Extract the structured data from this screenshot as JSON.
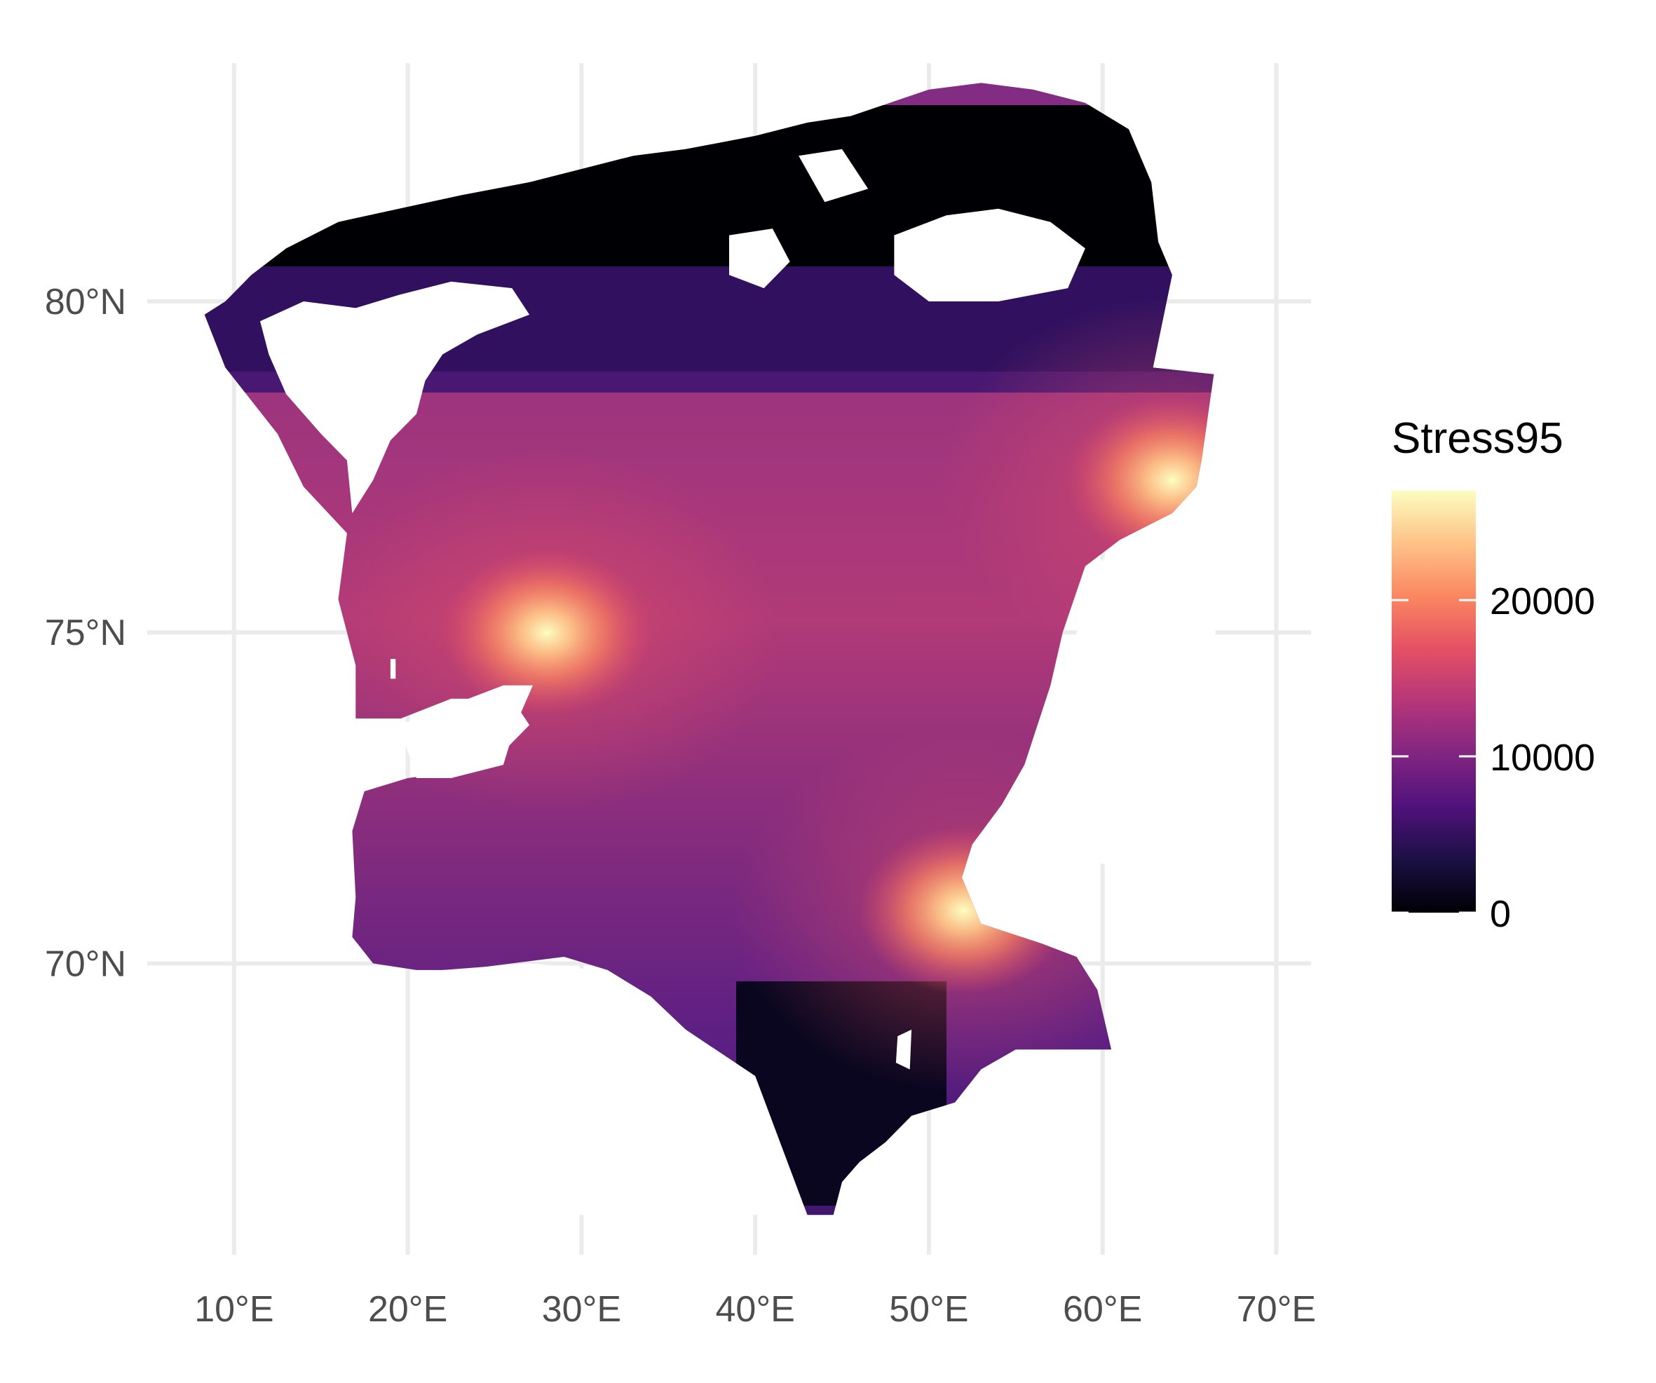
{
  "chart_data": {
    "type": "heatmap",
    "title": "",
    "xlabel": "",
    "ylabel": "",
    "x_axis": {
      "ticks": [
        10,
        20,
        30,
        40,
        50,
        60,
        70
      ],
      "tick_labels": [
        "10°E",
        "20°E",
        "30°E",
        "40°E",
        "50°E",
        "60°E",
        "70°E"
      ]
    },
    "y_axis": {
      "ticks": [
        70,
        75,
        80
      ],
      "tick_labels": [
        "70°N",
        "75°N",
        "80°N"
      ]
    },
    "xlim": [
      5,
      72
    ],
    "ylim": [
      65.6,
      83.6
    ],
    "grid": true,
    "legend": {
      "title": "Stress95",
      "placement": "right",
      "range": [
        0,
        27000
      ],
      "ticks": [
        0,
        10000,
        20000
      ],
      "tick_labels": [
        "0",
        "10000",
        "20000"
      ],
      "palette": "magma",
      "palette_colors": [
        "#000004",
        "#1c1044",
        "#4f127b",
        "#812581",
        "#b5367a",
        "#e55064",
        "#fb8761",
        "#fec287",
        "#fcfdbf"
      ]
    },
    "hotspots": [
      {
        "lon": 28,
        "lat": 75.0,
        "value": 26000
      },
      {
        "lon": 52,
        "lat": 70.8,
        "value": 25000
      },
      {
        "lon": 64,
        "lat": 77.3,
        "value": 23000
      }
    ]
  }
}
